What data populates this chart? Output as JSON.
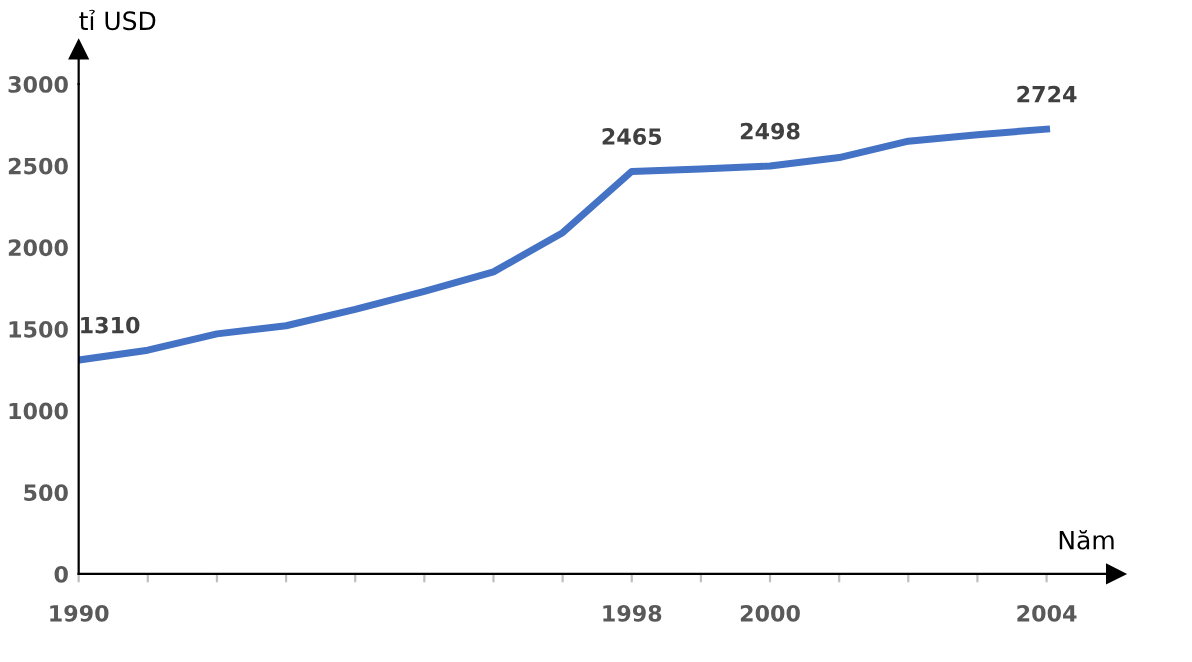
{
  "chart_data": {
    "type": "line",
    "xlabel": "Năm",
    "ylabel": "tỉ USD",
    "x": [
      1990,
      1991,
      1992,
      1993,
      1994,
      1995,
      1996,
      1997,
      1998,
      1999,
      2000,
      2001,
      2002,
      2003,
      2004
    ],
    "series": [
      {
        "color": "#4472c4",
        "values": [
          1310,
          1370,
          1470,
          1520,
          1620,
          1730,
          1850,
          2090,
          2465,
          2480,
          2498,
          2550,
          2650,
          2690,
          2724
        ],
        "value_labels": [
          "1310",
          null,
          null,
          null,
          null,
          null,
          null,
          null,
          "2465",
          null,
          "2498",
          null,
          null,
          null,
          "2724"
        ]
      }
    ],
    "xlim": [
      1990,
      2005
    ],
    "xticks": [
      1990,
      {
        "value": 1991,
        "label": null
      },
      {
        "value": 1992,
        "label": null
      },
      {
        "value": 1993,
        "label": null
      },
      {
        "value": 1994,
        "label": null
      },
      {
        "value": 1995,
        "label": null
      },
      {
        "value": 1996,
        "label": null
      },
      {
        "value": 1997,
        "label": null
      },
      1998,
      {
        "value": 1999,
        "label": null
      },
      2000,
      {
        "value": 2001,
        "label": null
      },
      {
        "value": 2002,
        "label": null
      },
      {
        "value": 2003,
        "label": null
      },
      2004
    ],
    "ylim": [
      0,
      3000
    ],
    "yticks": [
      0,
      500,
      1000,
      1500,
      2000,
      2500,
      3000
    ],
    "grid": false,
    "legend": false,
    "marker": "none",
    "line_style": "solid"
  }
}
